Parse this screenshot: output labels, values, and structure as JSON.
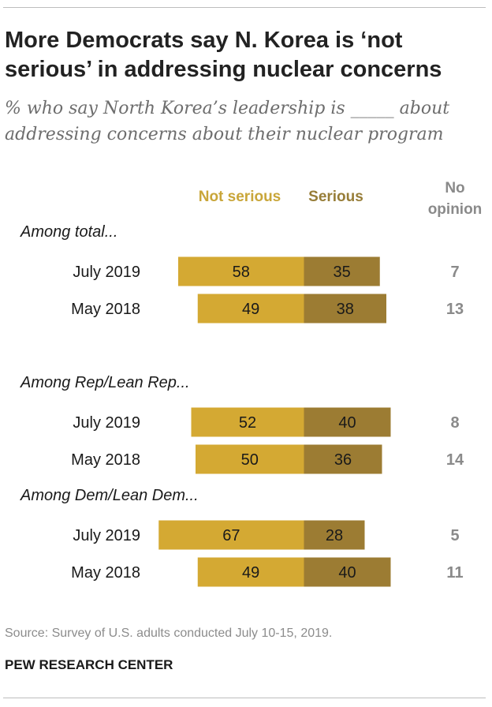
{
  "title": "More Democrats say N. Korea is ‘not serious’ in addressing nuclear concerns",
  "subtitle": "% who say North Korea’s leadership is _____ about addressing concerns about their nuclear program",
  "source": "Source: Survey of U.S. adults conducted July 10-15, 2019.",
  "footer": "PEW RESEARCH CENTER",
  "colors": {
    "not_serious": "#d4a933",
    "serious": "#9c7c33",
    "no_opinion_text": "#8a8a8a"
  },
  "chart_data": {
    "type": "bar",
    "orientation": "horizontal-diverging-stacked",
    "legend": {
      "not_serious": "Not serious",
      "serious": "Serious",
      "no_opinion": "No opinion"
    },
    "groups": [
      {
        "label": "Among total...",
        "rows": [
          {
            "label": "July 2019",
            "not_serious": 58,
            "serious": 35,
            "no_opinion": 7
          },
          {
            "label": "May 2018",
            "not_serious": 49,
            "serious": 38,
            "no_opinion": 13
          }
        ]
      },
      {
        "label": "Among Rep/Lean Rep...",
        "rows": [
          {
            "label": "July 2019",
            "not_serious": 52,
            "serious": 40,
            "no_opinion": 8
          },
          {
            "label": "May 2018",
            "not_serious": 50,
            "serious": 36,
            "no_opinion": 14
          }
        ]
      },
      {
        "label": "Among Dem/Lean Dem...",
        "rows": [
          {
            "label": "July 2019",
            "not_serious": 67,
            "serious": 28,
            "no_opinion": 5
          },
          {
            "label": "May 2018",
            "not_serious": 49,
            "serious": 40,
            "no_opinion": 11
          }
        ]
      }
    ]
  }
}
